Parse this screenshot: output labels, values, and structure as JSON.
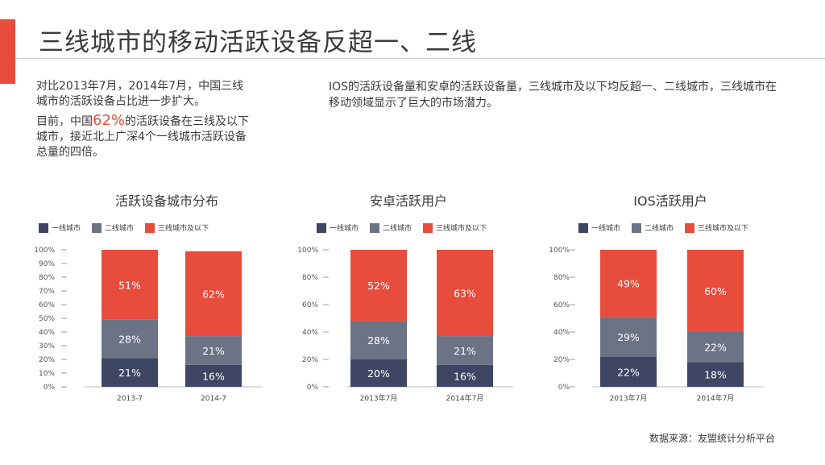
{
  "page": {
    "title": "三线城市的移动活跃设备反超一、二线",
    "left_text_1": "对比2013年7月，2014年7月，中国三线城市的活跃设备占比进一步扩大。",
    "left_text_2_pre": "目前，中国",
    "left_text_2_highlight": "62%",
    "left_text_2_post": "的活跃设备在三线及以下城市，接近北上广深4个一线城市活跃设备总量的四倍。",
    "right_text": "IOS的活跃设备量和安卓的活跃设备量，三线城市及以下均反超一、二线城市，三线城市在移动领域显示了巨大的市场潜力。",
    "source": "数据来源：友盟统计分析平台"
  },
  "colors": {
    "tier1": "#3e4663",
    "tier2": "#6b7385",
    "tier3": "#e84c3d",
    "accent": "#e84c3d"
  },
  "chart_data": [
    {
      "type": "bar",
      "stacked": true,
      "title": "活跃设备城市分布",
      "legend_position": "top",
      "categories": [
        "2013-7",
        "2014-7"
      ],
      "series": [
        {
          "name": "一线城市",
          "values": [
            21,
            16
          ]
        },
        {
          "name": "二线城市",
          "values": [
            28,
            21
          ]
        },
        {
          "name": "三线城市及以下",
          "values": [
            51,
            62
          ]
        }
      ],
      "data_labels": [
        [
          "21%",
          "16%"
        ],
        [
          "28%",
          "21%"
        ],
        [
          "51%",
          "62%"
        ]
      ],
      "ylim": [
        0,
        100
      ],
      "yticks": [
        0,
        10,
        20,
        30,
        40,
        50,
        60,
        70,
        80,
        90,
        100
      ],
      "ytick_labels": [
        "0%",
        "10%",
        "20%",
        "30%",
        "40%",
        "50%",
        "60%",
        "70%",
        "80%",
        "90%",
        "100%"
      ]
    },
    {
      "type": "bar",
      "stacked": true,
      "title": "安卓活跃用户",
      "legend_position": "top",
      "categories": [
        "2013年7月",
        "2014年7月"
      ],
      "series": [
        {
          "name": "一线城市",
          "values": [
            20,
            16
          ]
        },
        {
          "name": "二线城市",
          "values": [
            28,
            21
          ]
        },
        {
          "name": "三线城市及以下",
          "values": [
            52,
            63
          ]
        }
      ],
      "data_labels": [
        [
          "20%",
          "16%"
        ],
        [
          "28%",
          "21%"
        ],
        [
          "52%",
          "63%"
        ]
      ],
      "ylim": [
        0,
        100
      ],
      "yticks": [
        0,
        20,
        40,
        60,
        80,
        100
      ],
      "ytick_labels": [
        "0%",
        "20%",
        "40%",
        "60%",
        "80%",
        "100%"
      ]
    },
    {
      "type": "bar",
      "stacked": true,
      "title": "IOS活跃用户",
      "legend_position": "top",
      "categories": [
        "2013年7月",
        "2014年7月"
      ],
      "series": [
        {
          "name": "一线城市",
          "values": [
            22,
            18
          ]
        },
        {
          "name": "二线城市",
          "values": [
            29,
            22
          ]
        },
        {
          "name": "三线城市及以下",
          "values": [
            49,
            60
          ]
        }
      ],
      "data_labels": [
        [
          "22%",
          "18%"
        ],
        [
          "29%",
          "22%"
        ],
        [
          "49%",
          "60%"
        ]
      ],
      "ylim": [
        0,
        100
      ],
      "yticks": [
        0,
        20,
        40,
        60,
        80,
        100
      ],
      "ytick_labels": [
        "0%",
        "20%",
        "40%",
        "60%",
        "80%",
        "100%"
      ]
    }
  ]
}
